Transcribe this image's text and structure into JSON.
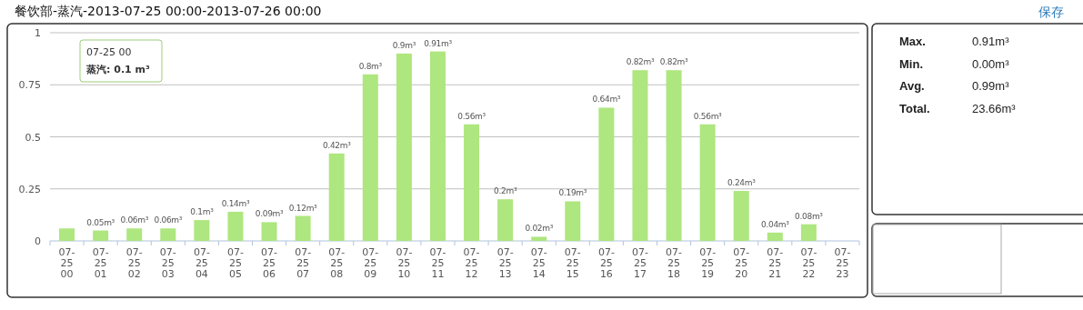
{
  "chart_data": [
    {
      "type": "bar",
      "title": "餐饮部-蒸汽-2013-07-25 00:00-2013-07-26 00:00",
      "categories": [
        "07-25 00",
        "07-25 01",
        "07-25 02",
        "07-25 03",
        "07-25 04",
        "07-25 05",
        "07-25 06",
        "07-25 07",
        "07-25 08",
        "07-25 09",
        "07-25 10",
        "07-25 11",
        "07-25 12",
        "07-25 13",
        "07-25 14",
        "07-25 15",
        "07-25 16",
        "07-25 17",
        "07-25 18",
        "07-25 19",
        "07-25 20",
        "07-25 21",
        "07-25 22",
        "07-25 23"
      ],
      "values": [
        0.06,
        0.05,
        0.06,
        0.06,
        0.1,
        0.14,
        0.09,
        0.12,
        0.42,
        0.8,
        0.9,
        0.91,
        0.56,
        0.2,
        0.02,
        0.19,
        0.64,
        0.82,
        0.82,
        0.56,
        0.24,
        0.04,
        0.08,
        0
      ],
      "value_labels": [
        null,
        "0.05m³",
        "0.06m³",
        "0.06m³",
        "0.1m³",
        "0.14m³",
        "0.09m³",
        "0.12m³",
        "0.42m³",
        "0.8m³",
        "0.9m³",
        "0.91m³",
        "0.56m³",
        "0.2m³",
        "0.02m³",
        "0.19m³",
        "0.64m³",
        "0.82m³",
        "0.82m³",
        "0.56m³",
        "0.24m³",
        "0.04m³",
        "0.08m³",
        null
      ],
      "color": "#aee67f",
      "ylim": [
        0,
        1
      ],
      "yticks": [
        0,
        0.25,
        0.5,
        0.75,
        1
      ],
      "grid": "y",
      "annotations": [
        "保存",
        "07-25 00",
        "蒸汽: 0.1 m³"
      ]
    },
    {
      "type": "other",
      "annotations": [
        "Max.",
        "0.91m³",
        "Min.",
        "0.00m³",
        "Avg.",
        "0.99m³",
        "Total.",
        "23.66m³"
      ]
    }
  ]
}
